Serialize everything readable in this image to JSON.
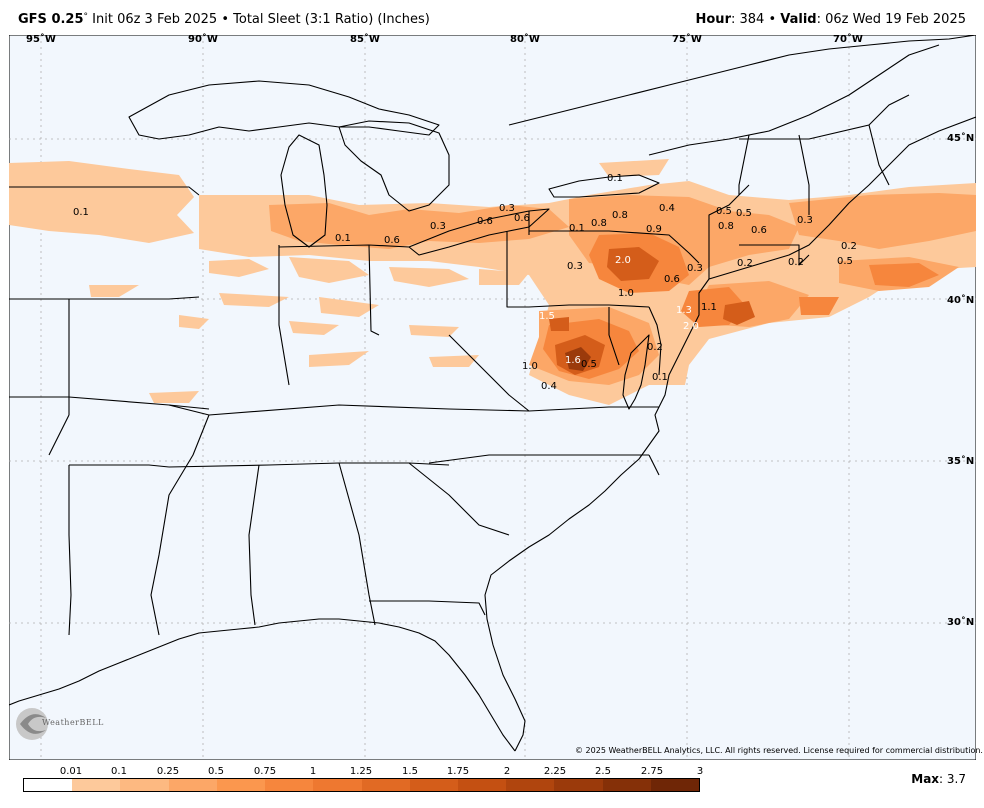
{
  "header": {
    "model": "GFS 0.25",
    "deg": "°",
    "init": " Init 06z 3 Feb 2025 • Total Sleet (3:1 Ratio) (Inches)",
    "hour_label": "Hour",
    "hour_value": ": 384 • ",
    "valid_label": "Valid",
    "valid_value": ": 06z Wed 19 Feb 2025"
  },
  "lon_labels": [
    "95˚W",
    "90˚W",
    "85˚W",
    "80˚W",
    "75˚W",
    "70˚W"
  ],
  "lat_labels": [
    "45˚N",
    "40˚N",
    "35˚N",
    "30˚N"
  ],
  "value_labels": [
    "0.1",
    "0.1",
    "0.6",
    "0.3",
    "0.6",
    "0.6",
    "0.3",
    "0.1",
    "0.1",
    "0.8",
    "0.8",
    "0.4",
    "0.9",
    "0.5",
    "0.5",
    "0.8",
    "0.6",
    "0.3",
    "0.3",
    "2.0",
    "1.0",
    "0.6",
    "0.3",
    "0.2",
    "0.2",
    "0.2",
    "0.5",
    "1.1",
    "1.3",
    "2.0",
    "1.5",
    "0.2",
    "0.1",
    "1.6",
    "0.5",
    "1.0",
    "0.4"
  ],
  "copyright": "© 2025 WeatherBELL Analytics, LLC. All rights reserved. License required for commercial distribution.",
  "logo_text": "WeatherBELL",
  "legend": {
    "ticks": [
      "0.01",
      "0.1",
      "0.25",
      "0.5",
      "0.75",
      "1",
      "1.25",
      "1.5",
      "1.75",
      "2",
      "2.25",
      "2.5",
      "2.75",
      "3"
    ],
    "colors": [
      "#ffffff",
      "#fdc99b",
      "#fdb981",
      "#fca767",
      "#fb974e",
      "#f6863d",
      "#ee7830",
      "#e16a24",
      "#d45d1a",
      "#c45012",
      "#b0450e",
      "#9b3a0b",
      "#853008",
      "#6f2606"
    ]
  },
  "max": {
    "label": "Max",
    "value": ": 3.7"
  }
}
